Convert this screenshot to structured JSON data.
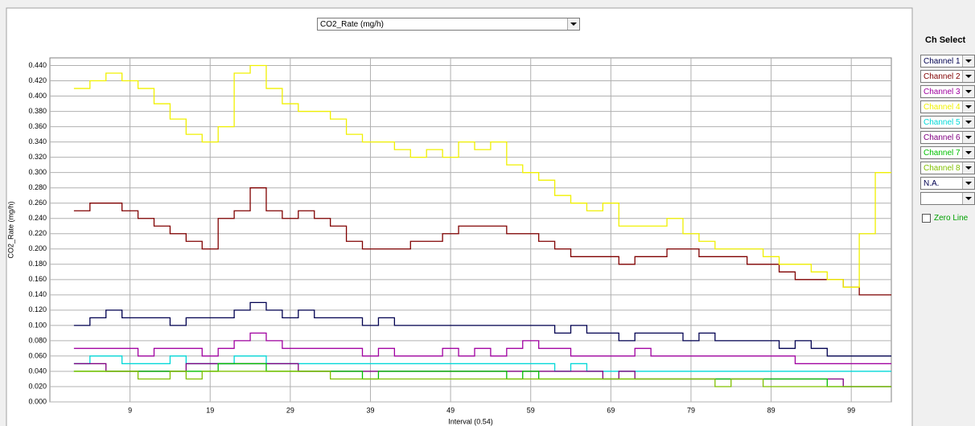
{
  "selector": {
    "value": "CO2_Rate (mg/h)"
  },
  "ch_select": {
    "title": "Ch Select",
    "extra": "N.A.",
    "zero_line": "Zero Line"
  },
  "chart_data": {
    "type": "line",
    "step": true,
    "ylabel": "CO2_Rate (mg/h)",
    "xlabel": "Interval (0.54)",
    "xlim": [
      -1,
      104
    ],
    "xticks": [
      9,
      19,
      29,
      39,
      49,
      59,
      69,
      79,
      89,
      99
    ],
    "ylim": [
      0,
      0.45
    ],
    "yticks": [
      {
        "value": 0,
        "label": "0.000"
      },
      {
        "value": 0.02,
        "label": "0.020"
      },
      {
        "value": 0.04,
        "label": "0.040"
      },
      {
        "value": 0.06,
        "label": "0.060"
      },
      {
        "value": 0.08,
        "label": "0.080"
      },
      {
        "value": 0.1,
        "label": "0.100"
      },
      {
        "value": 0.12,
        "label": "0.120"
      },
      {
        "value": 0.14,
        "label": "0.140"
      },
      {
        "value": 0.16,
        "label": "0.160"
      },
      {
        "value": 0.18,
        "label": "0.180"
      },
      {
        "value": 0.2,
        "label": "0.200"
      },
      {
        "value": 0.22,
        "label": "0.220"
      },
      {
        "value": 0.24,
        "label": "0.240"
      },
      {
        "value": 0.26,
        "label": "0.260"
      },
      {
        "value": 0.28,
        "label": "0.280"
      },
      {
        "value": 0.3,
        "label": "0.300"
      },
      {
        "value": 0.32,
        "label": "0.320"
      },
      {
        "value": 0.34,
        "label": "0.340"
      },
      {
        "value": 0.36,
        "label": "0.360"
      },
      {
        "value": 0.38,
        "label": "0.380"
      },
      {
        "value": 0.4,
        "label": "0.400"
      },
      {
        "value": 0.42,
        "label": "0.420"
      },
      {
        "value": 0.44,
        "label": "0.440"
      }
    ],
    "grid": true,
    "x": [
      2,
      4,
      6,
      8,
      10,
      12,
      14,
      16,
      18,
      20,
      22,
      24,
      26,
      28,
      30,
      32,
      34,
      36,
      38,
      40,
      42,
      44,
      46,
      48,
      50,
      52,
      54,
      56,
      58,
      60,
      62,
      64,
      66,
      68,
      70,
      72,
      74,
      76,
      78,
      80,
      82,
      84,
      86,
      88,
      90,
      92,
      94,
      96,
      98,
      100,
      102
    ],
    "series": [
      {
        "name": "Channel 1",
        "color": "#000050",
        "values": [
          0.1,
          0.11,
          0.12,
          0.11,
          0.11,
          0.11,
          0.1,
          0.11,
          0.11,
          0.11,
          0.12,
          0.13,
          0.12,
          0.11,
          0.12,
          0.11,
          0.11,
          0.11,
          0.1,
          0.11,
          0.1,
          0.1,
          0.1,
          0.1,
          0.1,
          0.1,
          0.1,
          0.1,
          0.1,
          0.1,
          0.09,
          0.1,
          0.09,
          0.09,
          0.08,
          0.09,
          0.09,
          0.09,
          0.08,
          0.09,
          0.08,
          0.08,
          0.08,
          0.08,
          0.07,
          0.08,
          0.07,
          0.06,
          0.06,
          0.06,
          0.06
        ]
      },
      {
        "name": "Channel 2",
        "color": "#800000",
        "values": [
          0.25,
          0.26,
          0.26,
          0.25,
          0.24,
          0.23,
          0.22,
          0.21,
          0.2,
          0.24,
          0.25,
          0.28,
          0.25,
          0.24,
          0.25,
          0.24,
          0.23,
          0.21,
          0.2,
          0.2,
          0.2,
          0.21,
          0.21,
          0.22,
          0.23,
          0.23,
          0.23,
          0.22,
          0.22,
          0.21,
          0.2,
          0.19,
          0.19,
          0.19,
          0.18,
          0.19,
          0.19,
          0.2,
          0.2,
          0.19,
          0.19,
          0.19,
          0.18,
          0.18,
          0.17,
          0.16,
          0.16,
          0.16,
          0.15,
          0.14,
          0.14
        ]
      },
      {
        "name": "Channel 3",
        "color": "#a000a0",
        "values": [
          0.07,
          0.07,
          0.07,
          0.07,
          0.06,
          0.07,
          0.07,
          0.07,
          0.06,
          0.07,
          0.08,
          0.09,
          0.08,
          0.07,
          0.07,
          0.07,
          0.07,
          0.07,
          0.06,
          0.07,
          0.06,
          0.06,
          0.06,
          0.07,
          0.06,
          0.07,
          0.06,
          0.07,
          0.08,
          0.07,
          0.07,
          0.06,
          0.06,
          0.06,
          0.06,
          0.07,
          0.06,
          0.06,
          0.06,
          0.06,
          0.06,
          0.06,
          0.06,
          0.06,
          0.06,
          0.05,
          0.05,
          0.05,
          0.05,
          0.05,
          0.05
        ]
      },
      {
        "name": "Channel 4",
        "color": "#f0f000",
        "values": [
          0.41,
          0.42,
          0.43,
          0.42,
          0.41,
          0.39,
          0.37,
          0.35,
          0.34,
          0.36,
          0.43,
          0.44,
          0.41,
          0.39,
          0.38,
          0.38,
          0.37,
          0.35,
          0.34,
          0.34,
          0.33,
          0.32,
          0.33,
          0.32,
          0.34,
          0.33,
          0.34,
          0.31,
          0.3,
          0.29,
          0.27,
          0.26,
          0.25,
          0.26,
          0.23,
          0.23,
          0.23,
          0.24,
          0.22,
          0.21,
          0.2,
          0.2,
          0.2,
          0.19,
          0.18,
          0.18,
          0.17,
          0.16,
          0.15,
          0.22,
          0.3
        ]
      },
      {
        "name": "Channel 5",
        "color": "#00d8d8",
        "values": [
          0.05,
          0.06,
          0.06,
          0.05,
          0.05,
          0.05,
          0.06,
          0.05,
          0.05,
          0.05,
          0.06,
          0.06,
          0.05,
          0.05,
          0.05,
          0.05,
          0.05,
          0.05,
          0.05,
          0.05,
          0.05,
          0.05,
          0.05,
          0.05,
          0.05,
          0.05,
          0.05,
          0.05,
          0.05,
          0.05,
          0.04,
          0.05,
          0.04,
          0.04,
          0.04,
          0.04,
          0.04,
          0.04,
          0.04,
          0.04,
          0.04,
          0.04,
          0.04,
          0.04,
          0.04,
          0.04,
          0.04,
          0.04,
          0.04,
          0.04,
          0.04
        ]
      },
      {
        "name": "Channel 6",
        "color": "#800080",
        "values": [
          0.05,
          0.05,
          0.04,
          0.04,
          0.04,
          0.04,
          0.04,
          0.05,
          0.05,
          0.05,
          0.05,
          0.05,
          0.05,
          0.05,
          0.04,
          0.04,
          0.04,
          0.04,
          0.04,
          0.04,
          0.04,
          0.04,
          0.04,
          0.04,
          0.04,
          0.04,
          0.04,
          0.04,
          0.04,
          0.04,
          0.04,
          0.04,
          0.04,
          0.03,
          0.04,
          0.03,
          0.03,
          0.03,
          0.03,
          0.03,
          0.03,
          0.03,
          0.03,
          0.03,
          0.03,
          0.03,
          0.03,
          0.03,
          0.02,
          0.02,
          0.02
        ]
      },
      {
        "name": "Channel 7",
        "color": "#00c000",
        "values": [
          0.04,
          0.04,
          0.04,
          0.04,
          0.04,
          0.04,
          0.04,
          0.04,
          0.04,
          0.05,
          0.05,
          0.05,
          0.04,
          0.04,
          0.04,
          0.04,
          0.04,
          0.04,
          0.03,
          0.04,
          0.04,
          0.04,
          0.04,
          0.04,
          0.04,
          0.04,
          0.04,
          0.03,
          0.04,
          0.03,
          0.03,
          0.03,
          0.03,
          0.03,
          0.03,
          0.03,
          0.03,
          0.03,
          0.03,
          0.03,
          0.03,
          0.03,
          0.03,
          0.03,
          0.03,
          0.03,
          0.03,
          0.02,
          0.02,
          0.02,
          0.02
        ]
      },
      {
        "name": "Channel 8",
        "color": "#80c000",
        "values": [
          0.04,
          0.04,
          0.04,
          0.04,
          0.03,
          0.03,
          0.04,
          0.03,
          0.04,
          0.04,
          0.04,
          0.04,
          0.04,
          0.04,
          0.04,
          0.04,
          0.03,
          0.03,
          0.03,
          0.03,
          0.03,
          0.03,
          0.03,
          0.03,
          0.03,
          0.03,
          0.03,
          0.03,
          0.03,
          0.03,
          0.03,
          0.03,
          0.03,
          0.03,
          0.03,
          0.03,
          0.03,
          0.03,
          0.03,
          0.03,
          0.02,
          0.03,
          0.03,
          0.02,
          0.02,
          0.02,
          0.02,
          0.02,
          0.02,
          0.02,
          0.02
        ]
      }
    ]
  }
}
